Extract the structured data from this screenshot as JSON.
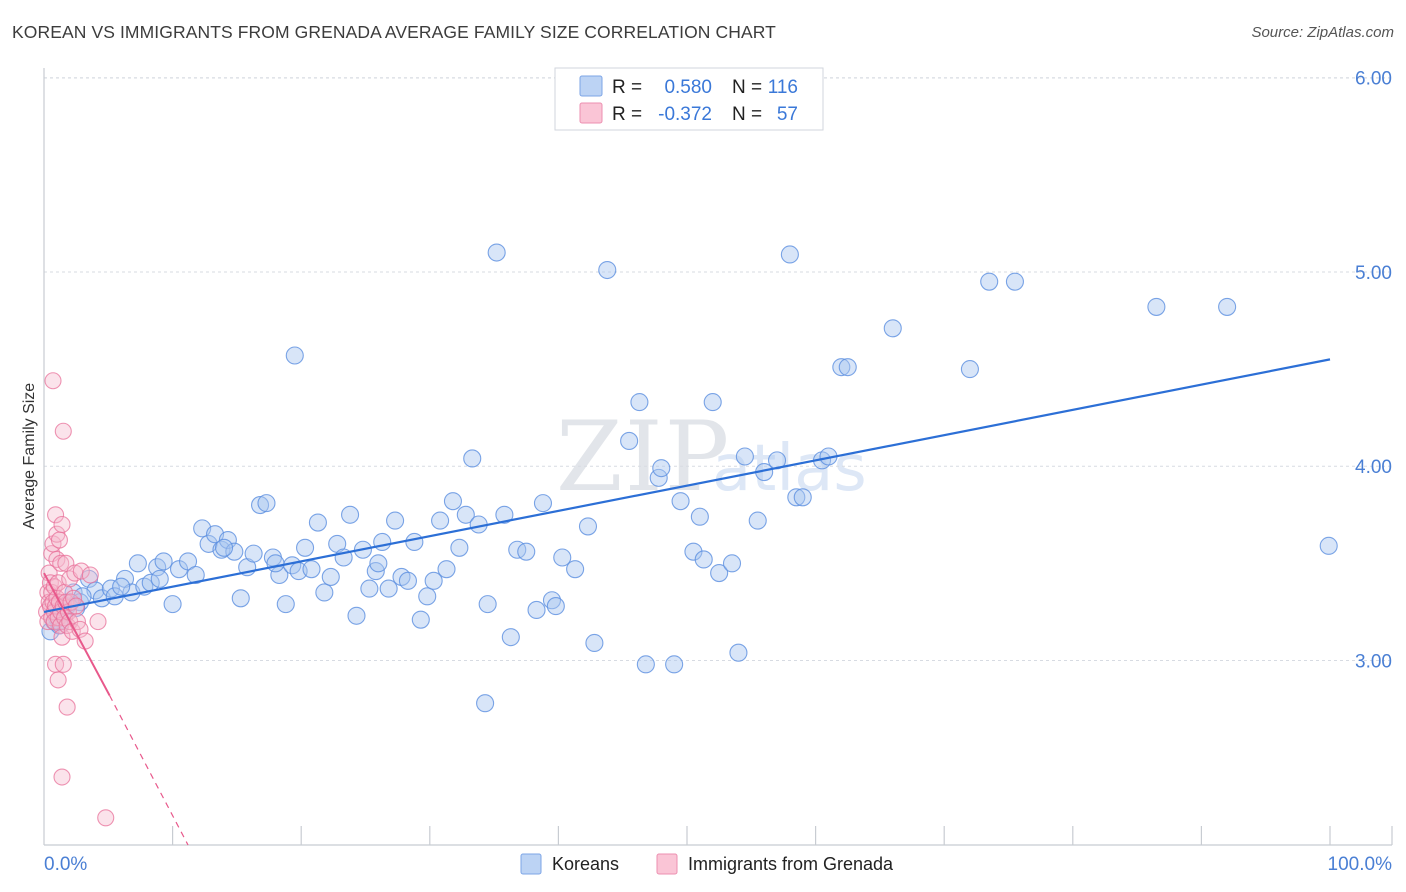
{
  "title": "KOREAN VS IMMIGRANTS FROM GRENADA AVERAGE FAMILY SIZE CORRELATION CHART",
  "source": "Source: ZipAtlas.com",
  "watermark": {
    "zip": "ZIP",
    "atlas": "atlas"
  },
  "colors": {
    "korean": "#5b8fe0",
    "korean_fill": "#a9c6f0",
    "korean_line": "#2c6fd6",
    "grenada": "#e8709a",
    "grenada_fill": "#f5b8cc",
    "grenada_line": "#e8588b",
    "grid": "#d7dbe2",
    "tick_text": "#4a7fd4"
  },
  "legend": {
    "rows": [
      {
        "r_label": "R =",
        "r_value": "0.580",
        "n_label": "N =",
        "n_value": "116"
      },
      {
        "r_label": "R =",
        "r_value": "-0.372",
        "n_label": "N =",
        "n_value": "57"
      }
    ]
  },
  "bottom_legend": {
    "korean": "Koreans",
    "grenada": "Immigrants from Grenada"
  },
  "chart_data": {
    "type": "scatter",
    "title": "KOREAN VS IMMIGRANTS FROM GRENADA AVERAGE FAMILY SIZE CORRELATION CHART",
    "xlabel": "",
    "ylabel": "Average Family Size",
    "xlim": [
      0,
      100
    ],
    "ylim": [
      2.05,
      6.05
    ],
    "x_tick_labels": [
      "0.0%",
      "100.0%"
    ],
    "y_ticks": [
      3.0,
      4.0,
      5.0,
      6.0
    ],
    "y_tick_labels": [
      "3.00",
      "4.00",
      "5.00",
      "6.00"
    ],
    "grid": true,
    "series": [
      {
        "name": "Koreans",
        "R": 0.58,
        "N": 116,
        "trend": {
          "x": [
            0,
            100
          ],
          "y": [
            3.25,
            4.55
          ],
          "style": "solid"
        },
        "points": [
          [
            0.5,
            3.15
          ],
          [
            0.8,
            3.2
          ],
          [
            1.0,
            3.22
          ],
          [
            1.2,
            3.18
          ],
          [
            1.5,
            3.25
          ],
          [
            1.8,
            3.28
          ],
          [
            2.0,
            3.3
          ],
          [
            2.3,
            3.35
          ],
          [
            2.8,
            3.3
          ],
          [
            3.5,
            3.42
          ],
          [
            4.0,
            3.36
          ],
          [
            4.5,
            3.32
          ],
          [
            5.2,
            3.37
          ],
          [
            5.5,
            3.33
          ],
          [
            6.3,
            3.42
          ],
          [
            6.8,
            3.35
          ],
          [
            7.3,
            3.5
          ],
          [
            7.8,
            3.38
          ],
          [
            8.3,
            3.4
          ],
          [
            8.8,
            3.48
          ],
          [
            9.3,
            3.51
          ],
          [
            10.0,
            3.29
          ],
          [
            10.5,
            3.47
          ],
          [
            11.2,
            3.51
          ],
          [
            11.8,
            3.44
          ],
          [
            12.3,
            3.68
          ],
          [
            12.8,
            3.6
          ],
          [
            13.3,
            3.65
          ],
          [
            13.8,
            3.57
          ],
          [
            14.3,
            3.62
          ],
          [
            14.8,
            3.56
          ],
          [
            15.3,
            3.32
          ],
          [
            15.8,
            3.48
          ],
          [
            16.3,
            3.55
          ],
          [
            16.8,
            3.8
          ],
          [
            17.3,
            3.81
          ],
          [
            17.8,
            3.53
          ],
          [
            18.3,
            3.44
          ],
          [
            18.8,
            3.29
          ],
          [
            19.3,
            3.49
          ],
          [
            19.5,
            4.57
          ],
          [
            19.8,
            3.46
          ],
          [
            20.3,
            3.58
          ],
          [
            20.8,
            3.47
          ],
          [
            21.3,
            3.71
          ],
          [
            21.8,
            3.35
          ],
          [
            22.3,
            3.43
          ],
          [
            22.8,
            3.6
          ],
          [
            23.3,
            3.53
          ],
          [
            23.8,
            3.75
          ],
          [
            24.3,
            3.23
          ],
          [
            24.8,
            3.57
          ],
          [
            25.3,
            3.37
          ],
          [
            25.8,
            3.46
          ],
          [
            26.3,
            3.61
          ],
          [
            26.8,
            3.37
          ],
          [
            27.3,
            3.72
          ],
          [
            27.8,
            3.43
          ],
          [
            28.3,
            3.41
          ],
          [
            28.8,
            3.61
          ],
          [
            29.3,
            3.21
          ],
          [
            29.8,
            3.33
          ],
          [
            30.3,
            3.41
          ],
          [
            30.8,
            3.72
          ],
          [
            31.3,
            3.47
          ],
          [
            31.8,
            3.82
          ],
          [
            32.3,
            3.58
          ],
          [
            32.8,
            3.75
          ],
          [
            33.3,
            4.04
          ],
          [
            33.8,
            3.7
          ],
          [
            34.3,
            2.78
          ],
          [
            34.5,
            3.29
          ],
          [
            35.2,
            5.1
          ],
          [
            35.8,
            3.75
          ],
          [
            36.3,
            3.12
          ],
          [
            36.8,
            3.57
          ],
          [
            37.5,
            3.56
          ],
          [
            38.3,
            3.26
          ],
          [
            38.8,
            3.81
          ],
          [
            39.5,
            3.31
          ],
          [
            39.8,
            3.28
          ],
          [
            40.3,
            3.53
          ],
          [
            41.3,
            3.47
          ],
          [
            42.3,
            3.69
          ],
          [
            42.8,
            3.09
          ],
          [
            43.8,
            5.01
          ],
          [
            45.5,
            4.13
          ],
          [
            46.3,
            4.33
          ],
          [
            46.8,
            2.98
          ],
          [
            47.8,
            3.94
          ],
          [
            48.0,
            3.99
          ],
          [
            49.0,
            2.98
          ],
          [
            49.5,
            3.82
          ],
          [
            50.5,
            3.56
          ],
          [
            51.0,
            3.74
          ],
          [
            51.3,
            3.52
          ],
          [
            52.0,
            4.33
          ],
          [
            52.5,
            3.45
          ],
          [
            53.5,
            3.5
          ],
          [
            54.0,
            3.04
          ],
          [
            54.5,
            4.05
          ],
          [
            55.5,
            3.72
          ],
          [
            56.0,
            3.97
          ],
          [
            57.0,
            4.03
          ],
          [
            58.0,
            5.09
          ],
          [
            58.5,
            3.84
          ],
          [
            59.0,
            3.84
          ],
          [
            60.5,
            4.03
          ],
          [
            61.0,
            4.05
          ],
          [
            62.0,
            4.51
          ],
          [
            62.5,
            4.51
          ],
          [
            66.0,
            4.71
          ],
          [
            72.0,
            4.5
          ],
          [
            73.5,
            4.95
          ],
          [
            75.5,
            4.95
          ],
          [
            86.5,
            4.82
          ],
          [
            92.0,
            4.82
          ],
          [
            99.9,
            3.59
          ],
          [
            1.2,
            3.2
          ],
          [
            2.5,
            3.27
          ],
          [
            3.0,
            3.33
          ],
          [
            6.0,
            3.38
          ],
          [
            9.0,
            3.42
          ],
          [
            14.0,
            3.58
          ],
          [
            18.0,
            3.5
          ],
          [
            26.0,
            3.5
          ]
        ]
      },
      {
        "name": "Immigrants from Grenada",
        "R": -0.372,
        "N": 57,
        "trend": {
          "x": [
            0,
            5.1,
            11.2
          ],
          "y": [
            3.45,
            2.82,
            2.05
          ],
          "style": "solid-then-dashed"
        },
        "points": [
          [
            0.2,
            3.25
          ],
          [
            0.3,
            3.35
          ],
          [
            0.3,
            3.2
          ],
          [
            0.4,
            3.3
          ],
          [
            0.4,
            3.45
          ],
          [
            0.5,
            3.28
          ],
          [
            0.5,
            3.4
          ],
          [
            0.6,
            3.22
          ],
          [
            0.6,
            3.35
          ],
          [
            0.6,
            3.55
          ],
          [
            0.7,
            3.3
          ],
          [
            0.7,
            4.44
          ],
          [
            0.7,
            3.6
          ],
          [
            0.8,
            3.25
          ],
          [
            0.8,
            3.2
          ],
          [
            0.8,
            3.38
          ],
          [
            0.9,
            3.28
          ],
          [
            0.9,
            3.75
          ],
          [
            0.9,
            2.98
          ],
          [
            1.0,
            3.65
          ],
          [
            1.0,
            3.32
          ],
          [
            1.0,
            3.52
          ],
          [
            1.1,
            3.22
          ],
          [
            1.1,
            3.4
          ],
          [
            1.1,
            2.9
          ],
          [
            1.2,
            3.3
          ],
          [
            1.2,
            3.62
          ],
          [
            1.3,
            3.18
          ],
          [
            1.3,
            3.5
          ],
          [
            1.3,
            3.25
          ],
          [
            1.4,
            3.7
          ],
          [
            1.4,
            3.12
          ],
          [
            1.4,
            2.4
          ],
          [
            1.5,
            3.28
          ],
          [
            1.5,
            2.98
          ],
          [
            1.5,
            4.18
          ],
          [
            1.6,
            3.22
          ],
          [
            1.6,
            3.35
          ],
          [
            1.7,
            3.3
          ],
          [
            1.7,
            3.5
          ],
          [
            1.8,
            3.18
          ],
          [
            1.8,
            2.76
          ],
          [
            1.9,
            3.25
          ],
          [
            2.0,
            3.42
          ],
          [
            2.0,
            3.2
          ],
          [
            2.1,
            3.3
          ],
          [
            2.2,
            3.15
          ],
          [
            2.3,
            3.32
          ],
          [
            2.4,
            3.45
          ],
          [
            2.5,
            3.28
          ],
          [
            2.6,
            3.2
          ],
          [
            2.8,
            3.16
          ],
          [
            2.9,
            3.46
          ],
          [
            3.2,
            3.1
          ],
          [
            3.6,
            3.44
          ],
          [
            4.2,
            3.2
          ],
          [
            4.8,
            2.19
          ]
        ]
      }
    ]
  }
}
